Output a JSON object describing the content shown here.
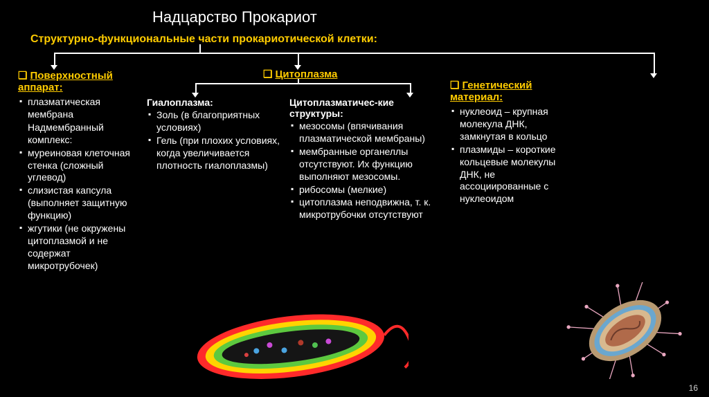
{
  "title": "Надцарство Прокариот",
  "subtitle": "Структурно-функциональные части прокариотической клетки:",
  "page_number": "16",
  "colors": {
    "bg": "#000000",
    "text": "#ffffff",
    "accent": "#ffcc00",
    "line": "#ffffff"
  },
  "headers": {
    "col1": "Поверхностный аппарат:",
    "col2_top": "Цитоплазма",
    "col2_sub1": "Гиалоплазма:",
    "col2_sub2": "Цитоплазматичес-кие структуры:",
    "col4": "Генетический материал:"
  },
  "col1_items": [
    "плазматическая мембрана",
    "Надмембранный комплекс:",
    "муреиновая клеточная стенка (сложный углевод)",
    "слизистая капсула (выполняет защитную функцию)",
    "жгутики (не окружены цитоплазмой и не содержат микротрубочек)"
  ],
  "col1_nobullet_idx": [
    1
  ],
  "col2_items": [
    "Золь (в  благоприятных условиях)",
    "Гель (при плохих условиях, когда увеличивается плотность гиалоплазмы)"
  ],
  "col3_items": [
    "мезосомы (впячивания плазматической мембраны)",
    "мембранные органеллы отсутствуют. Их функцию выполняют мезосомы.",
    "рибосомы (мелкие)",
    "цитоплазма неподвижна, т. к. микротрубочки отсутствуют"
  ],
  "col4_items": [
    "нуклеоид – крупная молекула ДНК, замкнутая в кольцо",
    "плазмиды – короткие кольцевые молекулы ДНК,   не ассоциированные с нуклеоидом"
  ],
  "bacterium1": {
    "outer": "#ff2a2a",
    "mid1": "#ffd400",
    "mid2": "#5dc93f",
    "inner": "#1a1a1a",
    "flagellum": "#ff2a2a"
  },
  "bacterium2": {
    "outer": "#b89a72",
    "ring1": "#6aa7cf",
    "ring2": "#d8b98f",
    "inner": "#b06a4a",
    "pili": "#e9a7c0"
  }
}
